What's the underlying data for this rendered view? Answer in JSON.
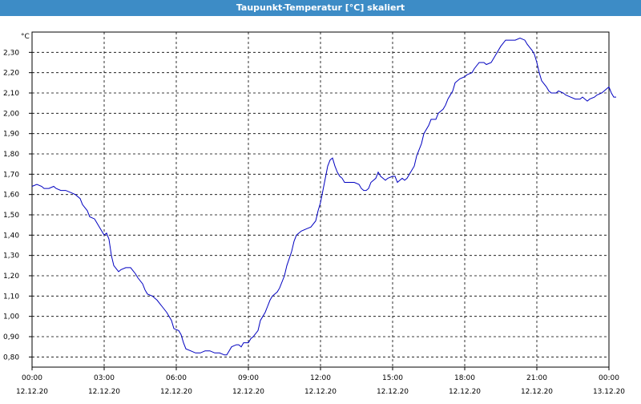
{
  "window": {
    "title": "Taupunkt-Temperatur [°C] skaliert"
  },
  "chart_data": {
    "type": "line",
    "title": "Taupunkt-Temperatur [°C] skaliert",
    "ylabel": "°C",
    "xlabel": "",
    "grid": true,
    "colors": {
      "line": "#0000c0",
      "grid": "#000000",
      "axis": "#000000"
    },
    "xlim": [
      0,
      24
    ],
    "ylim": [
      0.75,
      2.4
    ],
    "y_ticks": [
      0.8,
      0.9,
      1.0,
      1.1,
      1.2,
      1.3,
      1.4,
      1.5,
      1.6,
      1.7,
      1.8,
      1.9,
      2.0,
      2.1,
      2.2,
      2.3
    ],
    "y_tick_labels": [
      "0,80",
      "0,90",
      "1,00",
      "1,10",
      "1,20",
      "1,30",
      "1,40",
      "1,50",
      "1,60",
      "1,70",
      "1,80",
      "1,90",
      "2,00",
      "2,10",
      "2,20",
      "2,30"
    ],
    "x_ticks": [
      {
        "value": 0,
        "time": "00:00",
        "date": "12.12.20"
      },
      {
        "value": 3,
        "time": "03:00",
        "date": "12.12.20"
      },
      {
        "value": 6,
        "time": "06:00",
        "date": "12.12.20"
      },
      {
        "value": 9,
        "time": "09:00",
        "date": "12.12.20"
      },
      {
        "value": 12,
        "time": "12:00",
        "date": "12.12.20"
      },
      {
        "value": 15,
        "time": "15:00",
        "date": "12.12.20"
      },
      {
        "value": 18,
        "time": "18:00",
        "date": "12.12.20"
      },
      {
        "value": 21,
        "time": "21:00",
        "date": "12.12.20"
      },
      {
        "value": 24,
        "time": "00:00",
        "date": "13.12.20"
      }
    ],
    "series": [
      {
        "values": [
          [
            0.0,
            1.64
          ],
          [
            0.2,
            1.65
          ],
          [
            0.4,
            1.64
          ],
          [
            0.5,
            1.63
          ],
          [
            0.7,
            1.63
          ],
          [
            0.9,
            1.64
          ],
          [
            1.0,
            1.63
          ],
          [
            1.2,
            1.62
          ],
          [
            1.4,
            1.62
          ],
          [
            1.6,
            1.61
          ],
          [
            1.8,
            1.6
          ],
          [
            2.0,
            1.58
          ],
          [
            2.1,
            1.55
          ],
          [
            2.3,
            1.52
          ],
          [
            2.4,
            1.49
          ],
          [
            2.6,
            1.48
          ],
          [
            2.8,
            1.44
          ],
          [
            2.9,
            1.42
          ],
          [
            3.0,
            1.4
          ],
          [
            3.1,
            1.41
          ],
          [
            3.2,
            1.38
          ],
          [
            3.3,
            1.3
          ],
          [
            3.4,
            1.25
          ],
          [
            3.6,
            1.22
          ],
          [
            3.7,
            1.23
          ],
          [
            3.9,
            1.24
          ],
          [
            4.1,
            1.24
          ],
          [
            4.3,
            1.21
          ],
          [
            4.4,
            1.19
          ],
          [
            4.6,
            1.16
          ],
          [
            4.7,
            1.13
          ],
          [
            4.8,
            1.11
          ],
          [
            5.0,
            1.1
          ],
          [
            5.2,
            1.08
          ],
          [
            5.4,
            1.05
          ],
          [
            5.6,
            1.02
          ],
          [
            5.8,
            0.98
          ],
          [
            5.9,
            0.94
          ],
          [
            6.1,
            0.93
          ],
          [
            6.2,
            0.91
          ],
          [
            6.3,
            0.87
          ],
          [
            6.4,
            0.84
          ],
          [
            6.6,
            0.83
          ],
          [
            6.8,
            0.82
          ],
          [
            7.0,
            0.82
          ],
          [
            7.2,
            0.83
          ],
          [
            7.4,
            0.83
          ],
          [
            7.6,
            0.82
          ],
          [
            7.8,
            0.82
          ],
          [
            8.0,
            0.81
          ],
          [
            8.1,
            0.81
          ],
          [
            8.2,
            0.83
          ],
          [
            8.3,
            0.85
          ],
          [
            8.5,
            0.86
          ],
          [
            8.6,
            0.86
          ],
          [
            8.7,
            0.85
          ],
          [
            8.8,
            0.87
          ],
          [
            9.0,
            0.87
          ],
          [
            9.1,
            0.89
          ],
          [
            9.2,
            0.9
          ],
          [
            9.4,
            0.93
          ],
          [
            9.5,
            0.98
          ],
          [
            9.7,
            1.02
          ],
          [
            9.8,
            1.05
          ],
          [
            9.9,
            1.08
          ],
          [
            10.0,
            1.1
          ],
          [
            10.2,
            1.12
          ],
          [
            10.3,
            1.14
          ],
          [
            10.5,
            1.2
          ],
          [
            10.6,
            1.25
          ],
          [
            10.8,
            1.32
          ],
          [
            10.9,
            1.37
          ],
          [
            11.0,
            1.4
          ],
          [
            11.2,
            1.42
          ],
          [
            11.4,
            1.43
          ],
          [
            11.6,
            1.44
          ],
          [
            11.8,
            1.47
          ],
          [
            11.9,
            1.52
          ],
          [
            12.0,
            1.56
          ],
          [
            12.1,
            1.62
          ],
          [
            12.2,
            1.68
          ],
          [
            12.3,
            1.74
          ],
          [
            12.4,
            1.77
          ],
          [
            12.5,
            1.78
          ],
          [
            12.6,
            1.74
          ],
          [
            12.7,
            1.71
          ],
          [
            12.8,
            1.69
          ],
          [
            12.9,
            1.68
          ],
          [
            13.0,
            1.66
          ],
          [
            13.2,
            1.66
          ],
          [
            13.4,
            1.66
          ],
          [
            13.6,
            1.65
          ],
          [
            13.7,
            1.63
          ],
          [
            13.8,
            1.62
          ],
          [
            13.9,
            1.62
          ],
          [
            14.0,
            1.63
          ],
          [
            14.1,
            1.66
          ],
          [
            14.3,
            1.68
          ],
          [
            14.4,
            1.71
          ],
          [
            14.5,
            1.69
          ],
          [
            14.6,
            1.68
          ],
          [
            14.7,
            1.67
          ],
          [
            14.8,
            1.68
          ],
          [
            15.0,
            1.69
          ],
          [
            15.1,
            1.69
          ],
          [
            15.2,
            1.66
          ],
          [
            15.3,
            1.67
          ],
          [
            15.4,
            1.68
          ],
          [
            15.5,
            1.67
          ],
          [
            15.6,
            1.68
          ],
          [
            15.7,
            1.7
          ],
          [
            15.9,
            1.74
          ],
          [
            16.0,
            1.79
          ],
          [
            16.2,
            1.85
          ],
          [
            16.3,
            1.9
          ],
          [
            16.5,
            1.94
          ],
          [
            16.6,
            1.97
          ],
          [
            16.8,
            1.97
          ],
          [
            16.9,
            2.0
          ],
          [
            17.1,
            2.02
          ],
          [
            17.2,
            2.04
          ],
          [
            17.3,
            2.07
          ],
          [
            17.5,
            2.11
          ],
          [
            17.6,
            2.15
          ],
          [
            17.8,
            2.17
          ],
          [
            18.0,
            2.18
          ],
          [
            18.1,
            2.19
          ],
          [
            18.3,
            2.2
          ],
          [
            18.4,
            2.22
          ],
          [
            18.6,
            2.25
          ],
          [
            18.8,
            2.25
          ],
          [
            18.9,
            2.24
          ],
          [
            19.1,
            2.25
          ],
          [
            19.3,
            2.29
          ],
          [
            19.5,
            2.33
          ],
          [
            19.7,
            2.36
          ],
          [
            19.9,
            2.36
          ],
          [
            20.1,
            2.36
          ],
          [
            20.3,
            2.37
          ],
          [
            20.5,
            2.36
          ],
          [
            20.6,
            2.34
          ],
          [
            20.8,
            2.31
          ],
          [
            20.9,
            2.29
          ],
          [
            21.0,
            2.25
          ],
          [
            21.1,
            2.2
          ],
          [
            21.2,
            2.16
          ],
          [
            21.4,
            2.13
          ],
          [
            21.5,
            2.11
          ],
          [
            21.6,
            2.1
          ],
          [
            21.8,
            2.1
          ],
          [
            21.9,
            2.11
          ],
          [
            22.1,
            2.1
          ],
          [
            22.2,
            2.09
          ],
          [
            22.4,
            2.08
          ],
          [
            22.6,
            2.07
          ],
          [
            22.8,
            2.07
          ],
          [
            22.9,
            2.08
          ],
          [
            23.1,
            2.06
          ],
          [
            23.2,
            2.07
          ],
          [
            23.4,
            2.08
          ],
          [
            23.5,
            2.09
          ],
          [
            23.7,
            2.1
          ],
          [
            23.8,
            2.11
          ],
          [
            23.9,
            2.12
          ],
          [
            24.0,
            2.13
          ],
          [
            24.1,
            2.1
          ],
          [
            24.2,
            2.08
          ],
          [
            24.3,
            2.08
          ]
        ]
      }
    ]
  }
}
